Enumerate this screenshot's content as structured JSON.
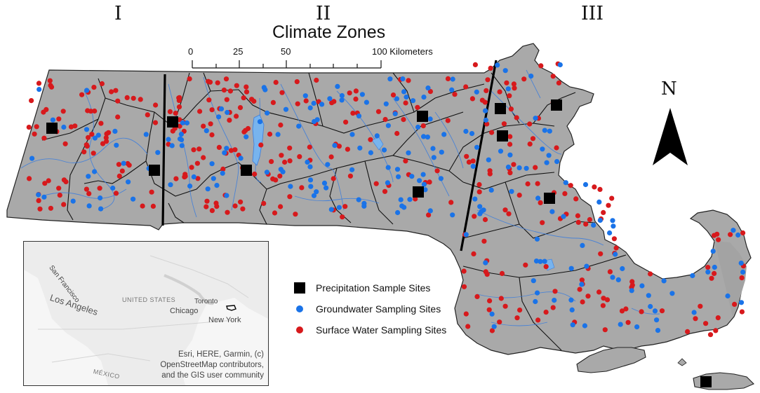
{
  "zones": [
    "I",
    "II",
    "III"
  ],
  "title": "Climate Zones",
  "scale": {
    "labels": [
      "0",
      "25",
      "50",
      "100 Kilometers"
    ]
  },
  "north_label": "N",
  "legend": [
    {
      "label": "Precipitation Sample Sites",
      "symbol": "square",
      "color": "#000000"
    },
    {
      "label": "Groundwater Sampling Sites",
      "symbol": "circle",
      "color": "#1a73e8"
    },
    {
      "label": "Surface Water Sampling Sites",
      "symbol": "circle",
      "color": "#d7191c"
    }
  ],
  "inset": {
    "cities": [
      "San Francisco",
      "Los Angeles",
      "UNITED STATES",
      "Chicago",
      "Toronto",
      "New York",
      "MÉXICO"
    ],
    "attribution": [
      "Esri, HERE, Garmin, (c)",
      "OpenStreetMap contributors,",
      "and the GIS user community"
    ]
  },
  "colors": {
    "land": "#a9a9a9",
    "water": "#3b7ddd",
    "groundwater": "#1a73e8",
    "surface": "#d7191c",
    "precip": "#000000"
  }
}
